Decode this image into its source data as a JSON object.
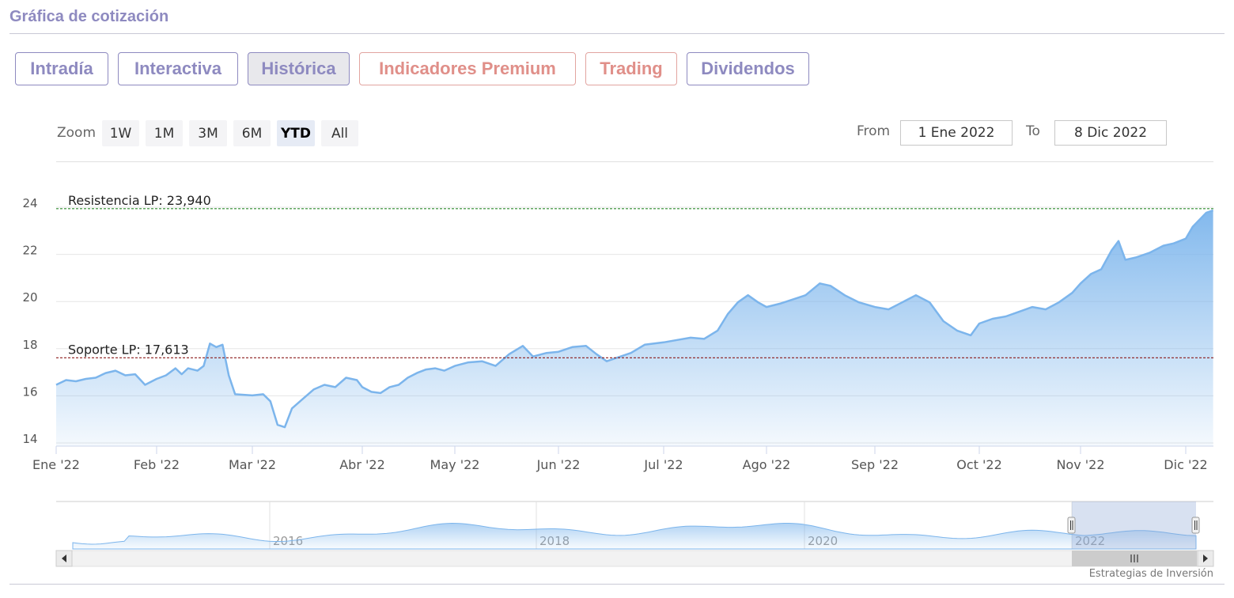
{
  "header": {
    "title": "Gráfica de cotización"
  },
  "tabs": [
    {
      "label": "Intradía",
      "style": "purple",
      "active": false
    },
    {
      "label": "Interactiva",
      "style": "purple",
      "active": false
    },
    {
      "label": "Histórica",
      "style": "purple",
      "active": true
    },
    {
      "label": "Indicadores Premium",
      "style": "red",
      "active": false
    },
    {
      "label": "Trading",
      "style": "red",
      "active": false
    },
    {
      "label": "Dividendos",
      "style": "purple",
      "active": false
    }
  ],
  "range_selector": {
    "zoom_label": "Zoom",
    "buttons": [
      "1W",
      "1M",
      "3M",
      "6M",
      "YTD",
      "All"
    ],
    "selected": "YTD",
    "from_label": "From",
    "from_value": "1 Ene 2022",
    "to_label": "To",
    "to_value": "8 Dic 2022"
  },
  "colors": {
    "brand_purple": "#8e8ac0",
    "premium_red": "#e08f89",
    "series_line": "#7cb5ec",
    "resistance_line": "#2e8b2e",
    "support_line": "#8b1a1a"
  },
  "chart_data": {
    "type": "area",
    "title": "",
    "xlabel": "",
    "ylabel": "",
    "ylim": [
      13.7,
      24.4
    ],
    "yticks": [
      14,
      16,
      18,
      20,
      22,
      24
    ],
    "xticks": [
      "Ene '22",
      "Feb '22",
      "Mar '22",
      "Abr '22",
      "May '22",
      "Jun '22",
      "Jul '22",
      "Ago '22",
      "Sep '22",
      "Oct '22",
      "Nov '22",
      "Dic '22"
    ],
    "grid": true,
    "series": [
      {
        "points": [
          [
            "Ene '22",
            16.3
          ],
          [
            "Ene '22 +3d",
            16.5
          ],
          [
            "Ene '22 +6d",
            16.45
          ],
          [
            "Ene '22 +9d",
            16.55
          ],
          [
            "Ene '22 +12d",
            16.6
          ],
          [
            "Ene '22 +15d",
            16.8
          ],
          [
            "Ene '22 +18d",
            16.9
          ],
          [
            "Ene '22 +21d",
            16.7
          ],
          [
            "Ene '22 +24d",
            16.75
          ],
          [
            "Ene '22 +27d",
            16.3
          ],
          [
            "Feb '22",
            16.55
          ],
          [
            "Feb '22 +3d",
            16.7
          ],
          [
            "Feb '22 +6d",
            17.0
          ],
          [
            "Feb '22 +8d",
            16.75
          ],
          [
            "Feb '22 +10d",
            17.0
          ],
          [
            "Feb '22 +13d",
            16.9
          ],
          [
            "Feb '22 +15d",
            17.1
          ],
          [
            "Feb '22 +17d",
            18.05
          ],
          [
            "Feb '22 +19d",
            17.9
          ],
          [
            "Feb '22 +21d",
            18.0
          ],
          [
            "Feb '22 +23d",
            16.7
          ],
          [
            "Feb '22 +25d",
            15.9
          ],
          [
            "Mar '22",
            15.85
          ],
          [
            "Mar '22 +3d",
            15.9
          ],
          [
            "Mar '22 +5d",
            15.6
          ],
          [
            "Mar '22 +7d",
            14.6
          ],
          [
            "Mar '22 +9d",
            14.5
          ],
          [
            "Mar '22 +11d",
            15.3
          ],
          [
            "Mar '22 +14d",
            15.7
          ],
          [
            "Mar '22 +17d",
            16.1
          ],
          [
            "Mar '22 +20d",
            16.3
          ],
          [
            "Mar '22 +23d",
            16.2
          ],
          [
            "Mar '22 +26d",
            16.6
          ],
          [
            "Mar '22 +29d",
            16.5
          ],
          [
            "Abr '22",
            16.2
          ],
          [
            "Abr '22 +3d",
            16.0
          ],
          [
            "Abr '22 +6d",
            15.95
          ],
          [
            "Abr '22 +9d",
            16.2
          ],
          [
            "Abr '22 +12d",
            16.3
          ],
          [
            "Abr '22 +15d",
            16.6
          ],
          [
            "Abr '22 +18d",
            16.8
          ],
          [
            "Abr '22 +21d",
            16.95
          ],
          [
            "Abr '22 +24d",
            17.0
          ],
          [
            "Abr '22 +27d",
            16.9
          ],
          [
            "May '22",
            17.1
          ],
          [
            "May '22 +4d",
            17.25
          ],
          [
            "May '22 +8d",
            17.3
          ],
          [
            "May '22 +12d",
            17.1
          ],
          [
            "May '22 +16d",
            17.6
          ],
          [
            "May '22 +20d",
            17.95
          ],
          [
            "May '22 +23d",
            17.5
          ],
          [
            "May '22 +27d",
            17.65
          ],
          [
            "Jun '22",
            17.7
          ],
          [
            "Jun '22 +4d",
            17.9
          ],
          [
            "Jun '22 +8d",
            17.95
          ],
          [
            "Jun '22 +11d",
            17.6
          ],
          [
            "Jun '22 +14d",
            17.3
          ],
          [
            "Jun '22 +17d",
            17.45
          ],
          [
            "Jun '22 +21d",
            17.65
          ],
          [
            "Jun '22 +25d",
            18.0
          ],
          [
            "Jul '22",
            18.1
          ],
          [
            "Jul '22 +4d",
            18.2
          ],
          [
            "Jul '22 +8d",
            18.3
          ],
          [
            "Jul '22 +12d",
            18.25
          ],
          [
            "Jul '22 +16d",
            18.6
          ],
          [
            "Jul '22 +19d",
            19.3
          ],
          [
            "Jul '22 +22d",
            19.8
          ],
          [
            "Jul '22 +25d",
            20.1
          ],
          [
            "Jul '22 +28d",
            19.8
          ],
          [
            "Ago '22",
            19.6
          ],
          [
            "Ago '22 +4d",
            19.75
          ],
          [
            "Ago '22 +7d",
            19.9
          ],
          [
            "Ago '22 +11d",
            20.1
          ],
          [
            "Ago '22 +15d",
            20.6
          ],
          [
            "Ago '22 +18d",
            20.5
          ],
          [
            "Ago '22 +22d",
            20.1
          ],
          [
            "Ago '22 +26d",
            19.8
          ],
          [
            "Sep '22",
            19.6
          ],
          [
            "Sep '22 +4d",
            19.5
          ],
          [
            "Sep '22 +8d",
            19.8
          ],
          [
            "Sep '22 +12d",
            20.1
          ],
          [
            "Sep '22 +16d",
            19.8
          ],
          [
            "Sep '22 +20d",
            19.0
          ],
          [
            "Sep '22 +24d",
            18.6
          ],
          [
            "Sep '22 +28d",
            18.4
          ],
          [
            "Oct '22",
            18.9
          ],
          [
            "Oct '22 +4d",
            19.1
          ],
          [
            "Oct '22 +8d",
            19.2
          ],
          [
            "Oct '22 +12d",
            19.4
          ],
          [
            "Oct '22 +16d",
            19.6
          ],
          [
            "Oct '22 +20d",
            19.5
          ],
          [
            "Oct '22 +24d",
            19.8
          ],
          [
            "Oct '22 +28d",
            20.2
          ],
          [
            "Nov '22",
            20.6
          ],
          [
            "Nov '22 +3d",
            21.0
          ],
          [
            "Nov '22 +6d",
            21.2
          ],
          [
            "Nov '22 +9d",
            22.0
          ],
          [
            "Nov '22 +11d",
            22.4
          ],
          [
            "Nov '22 +13d",
            21.6
          ],
          [
            "Nov '22 +16d",
            21.7
          ],
          [
            "Nov '22 +20d",
            21.9
          ],
          [
            "Nov '22 +24d",
            22.2
          ],
          [
            "Nov '22 +27d",
            22.3
          ],
          [
            "Dic '22",
            22.5
          ],
          [
            "Dic '22 +2d",
            23.0
          ],
          [
            "Dic '22 +4d",
            23.3
          ],
          [
            "Dic '22 +6d",
            23.6
          ],
          [
            "Dic '22 +8d",
            23.7
          ]
        ]
      }
    ],
    "annotations": [
      {
        "label": "Resistencia LP: 23,940",
        "value": 23.94,
        "style": "dashed",
        "color": "#2e8b2e"
      },
      {
        "label": "Soporte LP: 17,613",
        "value": 17.613,
        "style": "dashed",
        "color": "#8b1a1a"
      }
    ],
    "navigator": {
      "year_labels": [
        "2016",
        "2018",
        "2020",
        "2022"
      ],
      "selected_range": "2022"
    }
  },
  "footer": {
    "credit": "Estrategias de Inversión"
  }
}
